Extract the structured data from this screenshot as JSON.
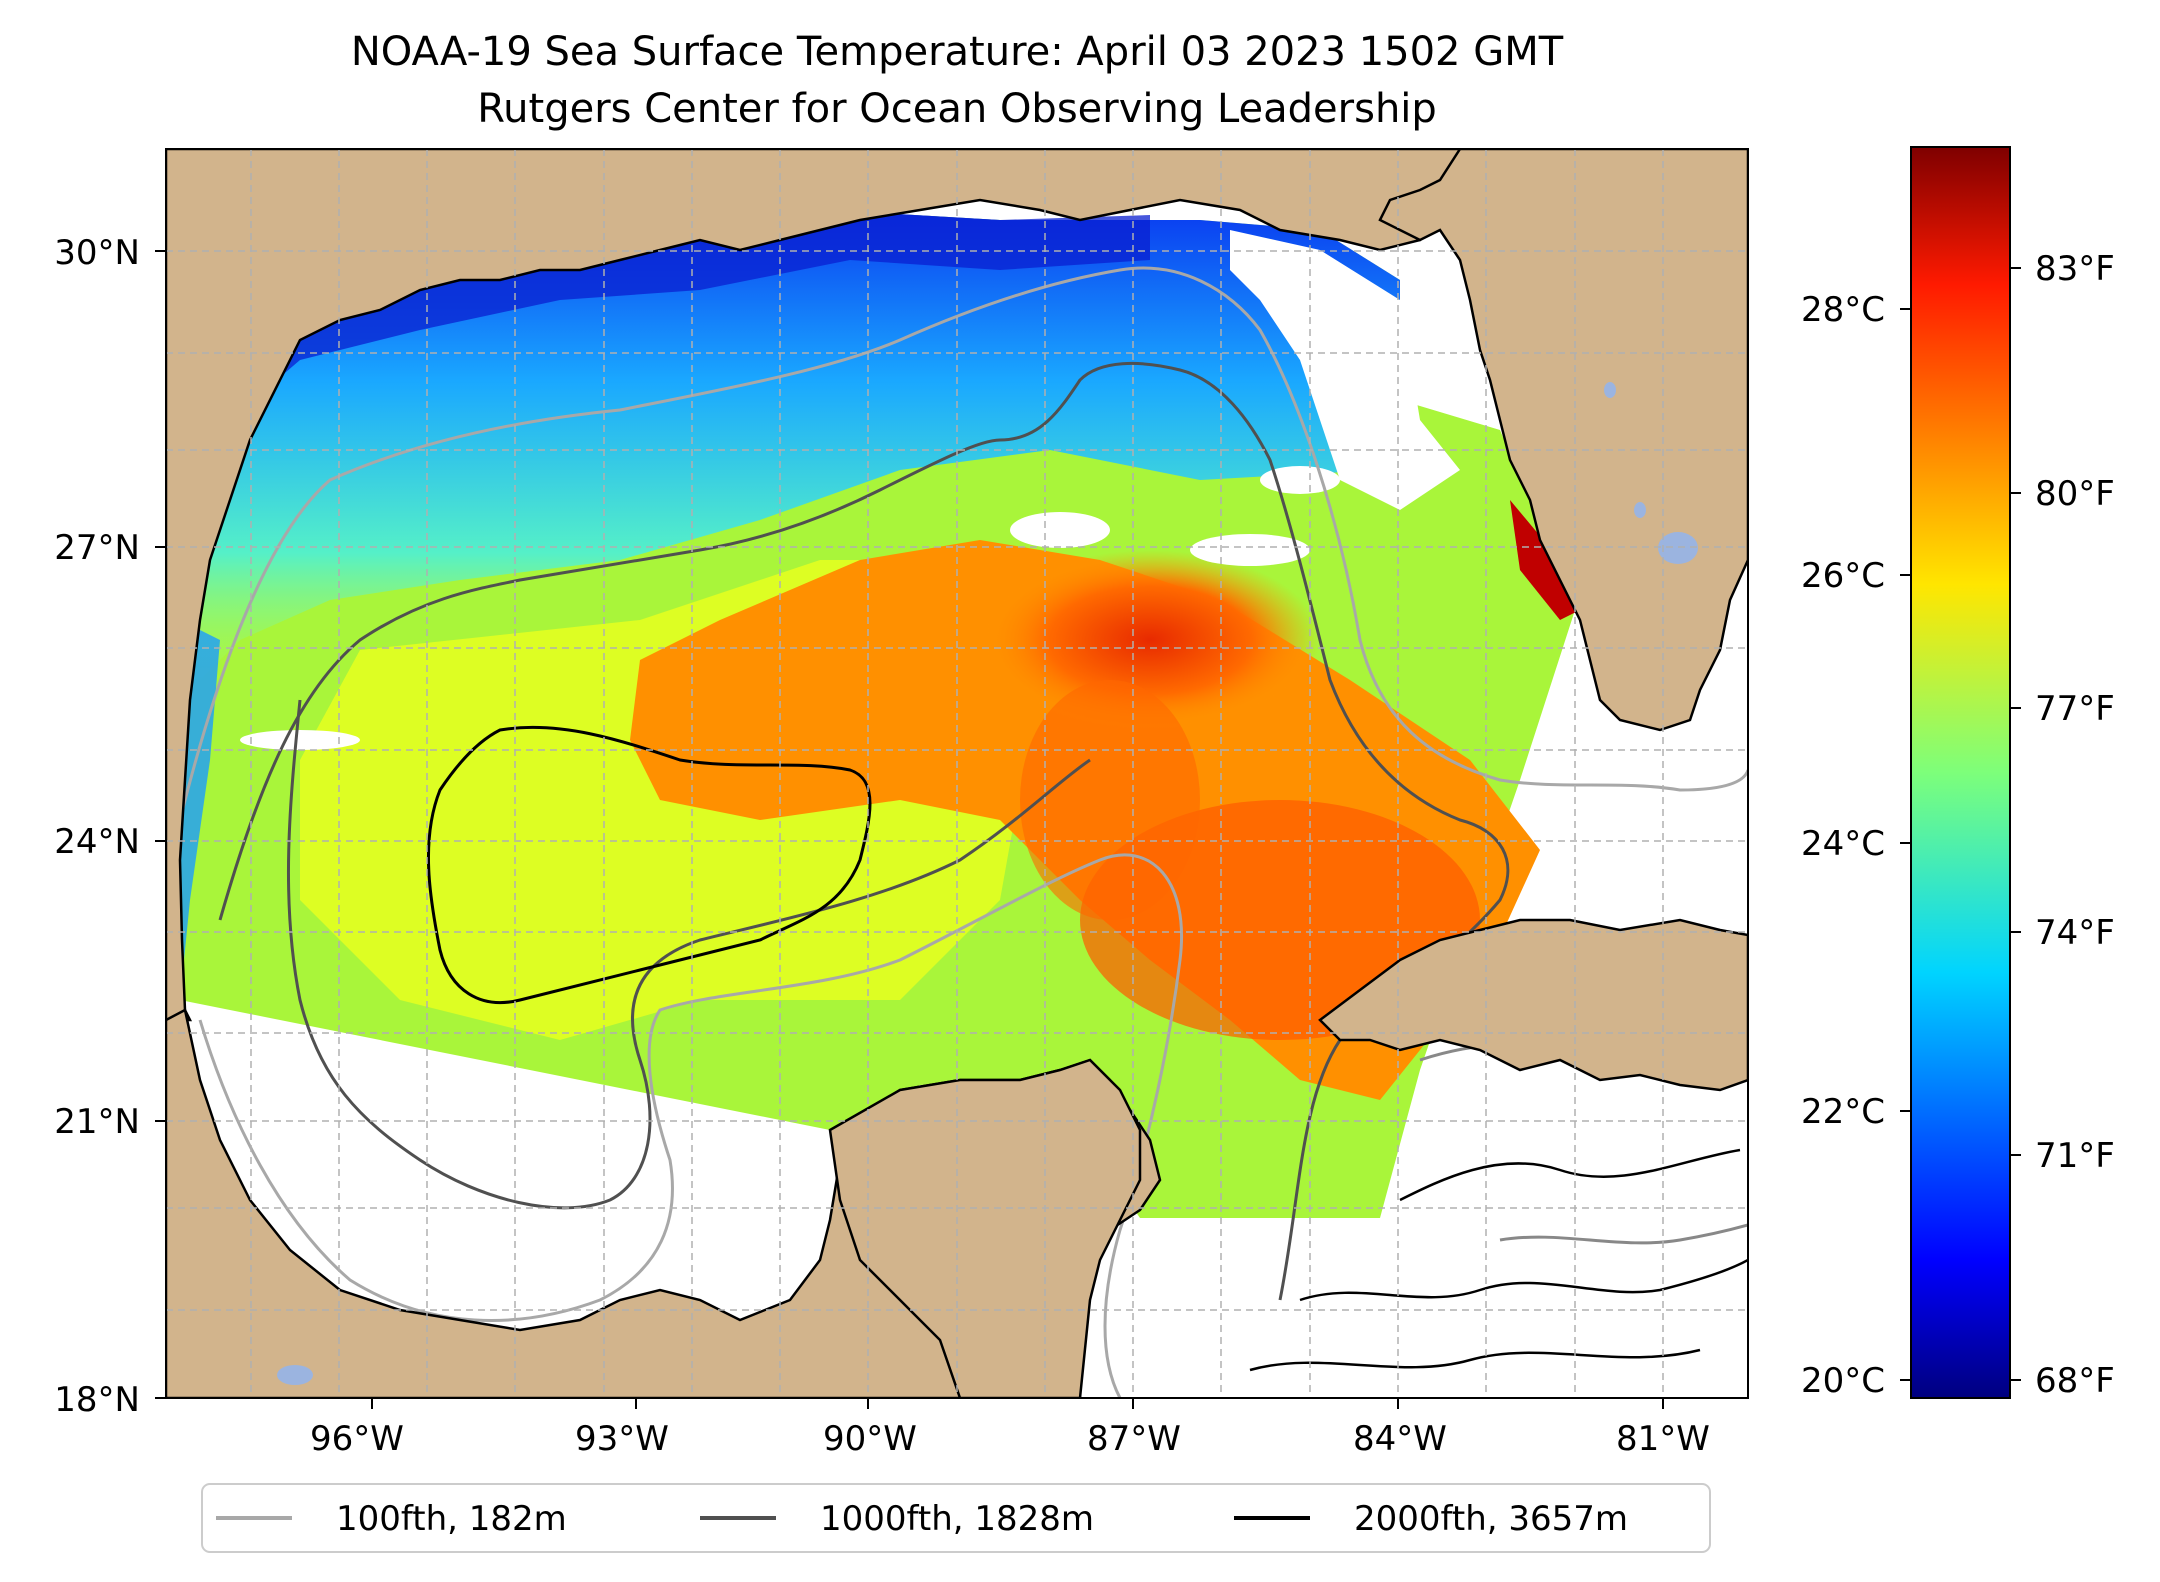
{
  "title": {
    "line1": "NOAA-19 Sea Surface Temperature: April 03 2023 1502 GMT",
    "line2": "Rutgers Center for Ocean Observing Leadership"
  },
  "map": {
    "lon_range": [
      -98,
      -80.3
    ],
    "lat_range": [
      18,
      31
    ],
    "lon_ticks": [
      "96°W",
      "93°W",
      "90°W",
      "87°W",
      "84°W",
      "81°W"
    ],
    "lat_ticks": [
      "18°N",
      "21°N",
      "24°N",
      "27°N",
      "30°N"
    ],
    "colors": {
      "land": "#d2b48c",
      "no_data": "#ffffff",
      "water_bodies": "#9bb4e0",
      "grid": "#b0b0b0"
    },
    "gridlines": true
  },
  "legend": {
    "placement": "bottom-center",
    "items": [
      {
        "label": "100fth, 182m",
        "color": "#a8a8a8"
      },
      {
        "label": "1000fth, 1828m",
        "color": "#505050"
      },
      {
        "label": "2000fth, 3657m",
        "color": "#000000"
      }
    ]
  },
  "colorbar": {
    "colormap": "jet",
    "celsius_ticks": [
      "20°C",
      "22°C",
      "24°C",
      "26°C",
      "28°C"
    ],
    "fahrenheit_ticks": [
      "68°F",
      "71°F",
      "74°F",
      "77°F",
      "80°F",
      "83°F"
    ]
  },
  "chart_data": {
    "type": "heatmap",
    "variable": "Sea Surface Temperature",
    "units": [
      "°C",
      "°F"
    ],
    "celsius_tick_values": [
      20,
      22,
      24,
      26,
      28
    ],
    "fahrenheit_tick_values": [
      68,
      71,
      74,
      77,
      80,
      83
    ],
    "color_range_celsius": [
      19.8,
      29.2
    ],
    "x_range_deg": [
      -98,
      -80.3
    ],
    "y_range_deg": [
      18,
      31
    ]
  }
}
